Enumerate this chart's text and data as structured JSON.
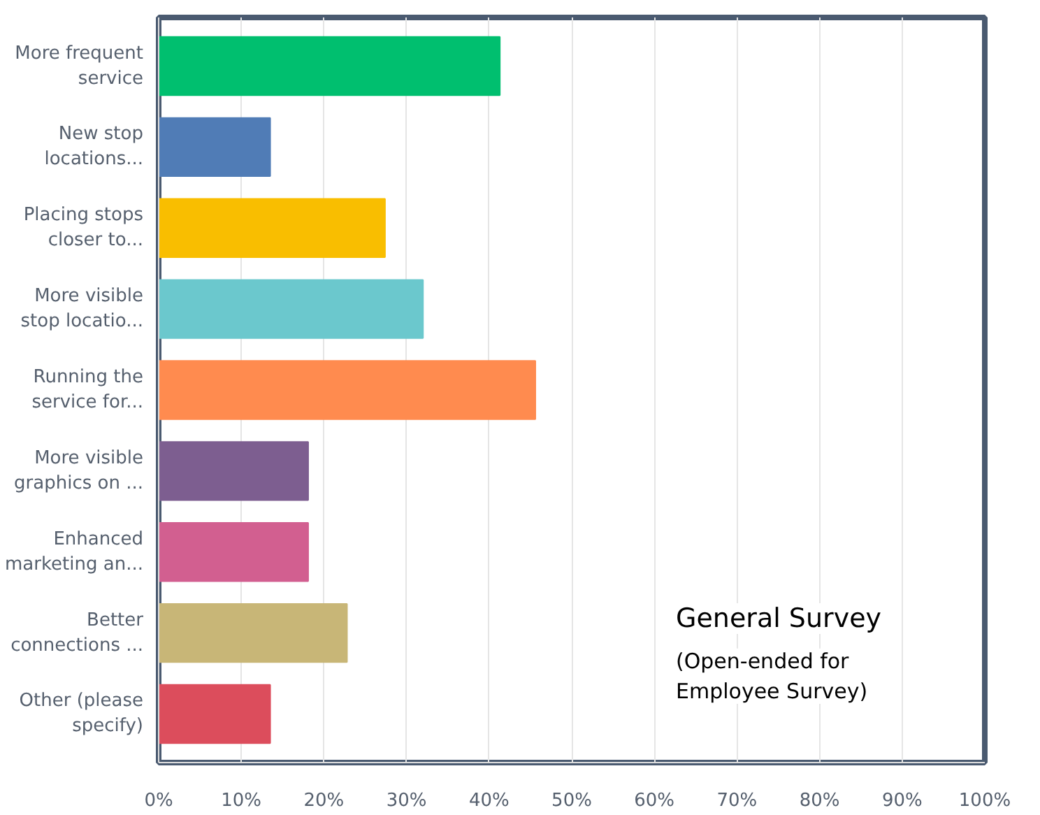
{
  "chart_data": {
    "type": "bar",
    "orientation": "horizontal",
    "categories": [
      "More frequent\nservice",
      "New stop\nlocations...",
      "Placing stops\ncloser to...",
      "More visible\nstop locatio...",
      "Running the\nservice for...",
      "More visible\ngraphics on ...",
      "Enhanced\nmarketing an...",
      "Better\nconnections ...",
      "Other (please\nspecify)"
    ],
    "values": [
      41.3,
      13.5,
      27.4,
      32.0,
      45.6,
      18.1,
      18.1,
      22.8,
      13.5
    ],
    "colors": [
      "#00bf6f",
      "#507cb6",
      "#f9be00",
      "#6bc8cd",
      "#ff8b4f",
      "#7d5e90",
      "#d25f90",
      "#c8b677",
      "#dc4d5c"
    ],
    "xlim": [
      0,
      100
    ],
    "xticks": [
      {
        "value": 0,
        "label": "0%"
      },
      {
        "value": 10,
        "label": "10%"
      },
      {
        "value": 20,
        "label": "20%"
      },
      {
        "value": 30,
        "label": "30%"
      },
      {
        "value": 40,
        "label": "40%"
      },
      {
        "value": 50,
        "label": "50%"
      },
      {
        "value": 60,
        "label": "60%"
      },
      {
        "value": 70,
        "label": "70%"
      },
      {
        "value": 80,
        "label": "80%"
      },
      {
        "value": 90,
        "label": "90%"
      },
      {
        "value": 100,
        "label": "100%"
      }
    ],
    "grid": "x",
    "annotations": [
      "General Survey",
      "(Open-ended for\nEmployee Survey)"
    ]
  }
}
